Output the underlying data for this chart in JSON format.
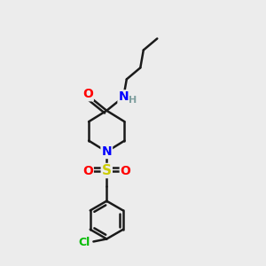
{
  "bg_color": "#ececec",
  "bond_color": "#1a1a1a",
  "atom_colors": {
    "O": "#ff0000",
    "N": "#0000ff",
    "S": "#cccc00",
    "Cl": "#00bb00",
    "H": "#7f9f9f"
  },
  "font_size": 10,
  "bond_width": 1.8,
  "figsize": [
    3.0,
    3.0
  ],
  "dpi": 100
}
